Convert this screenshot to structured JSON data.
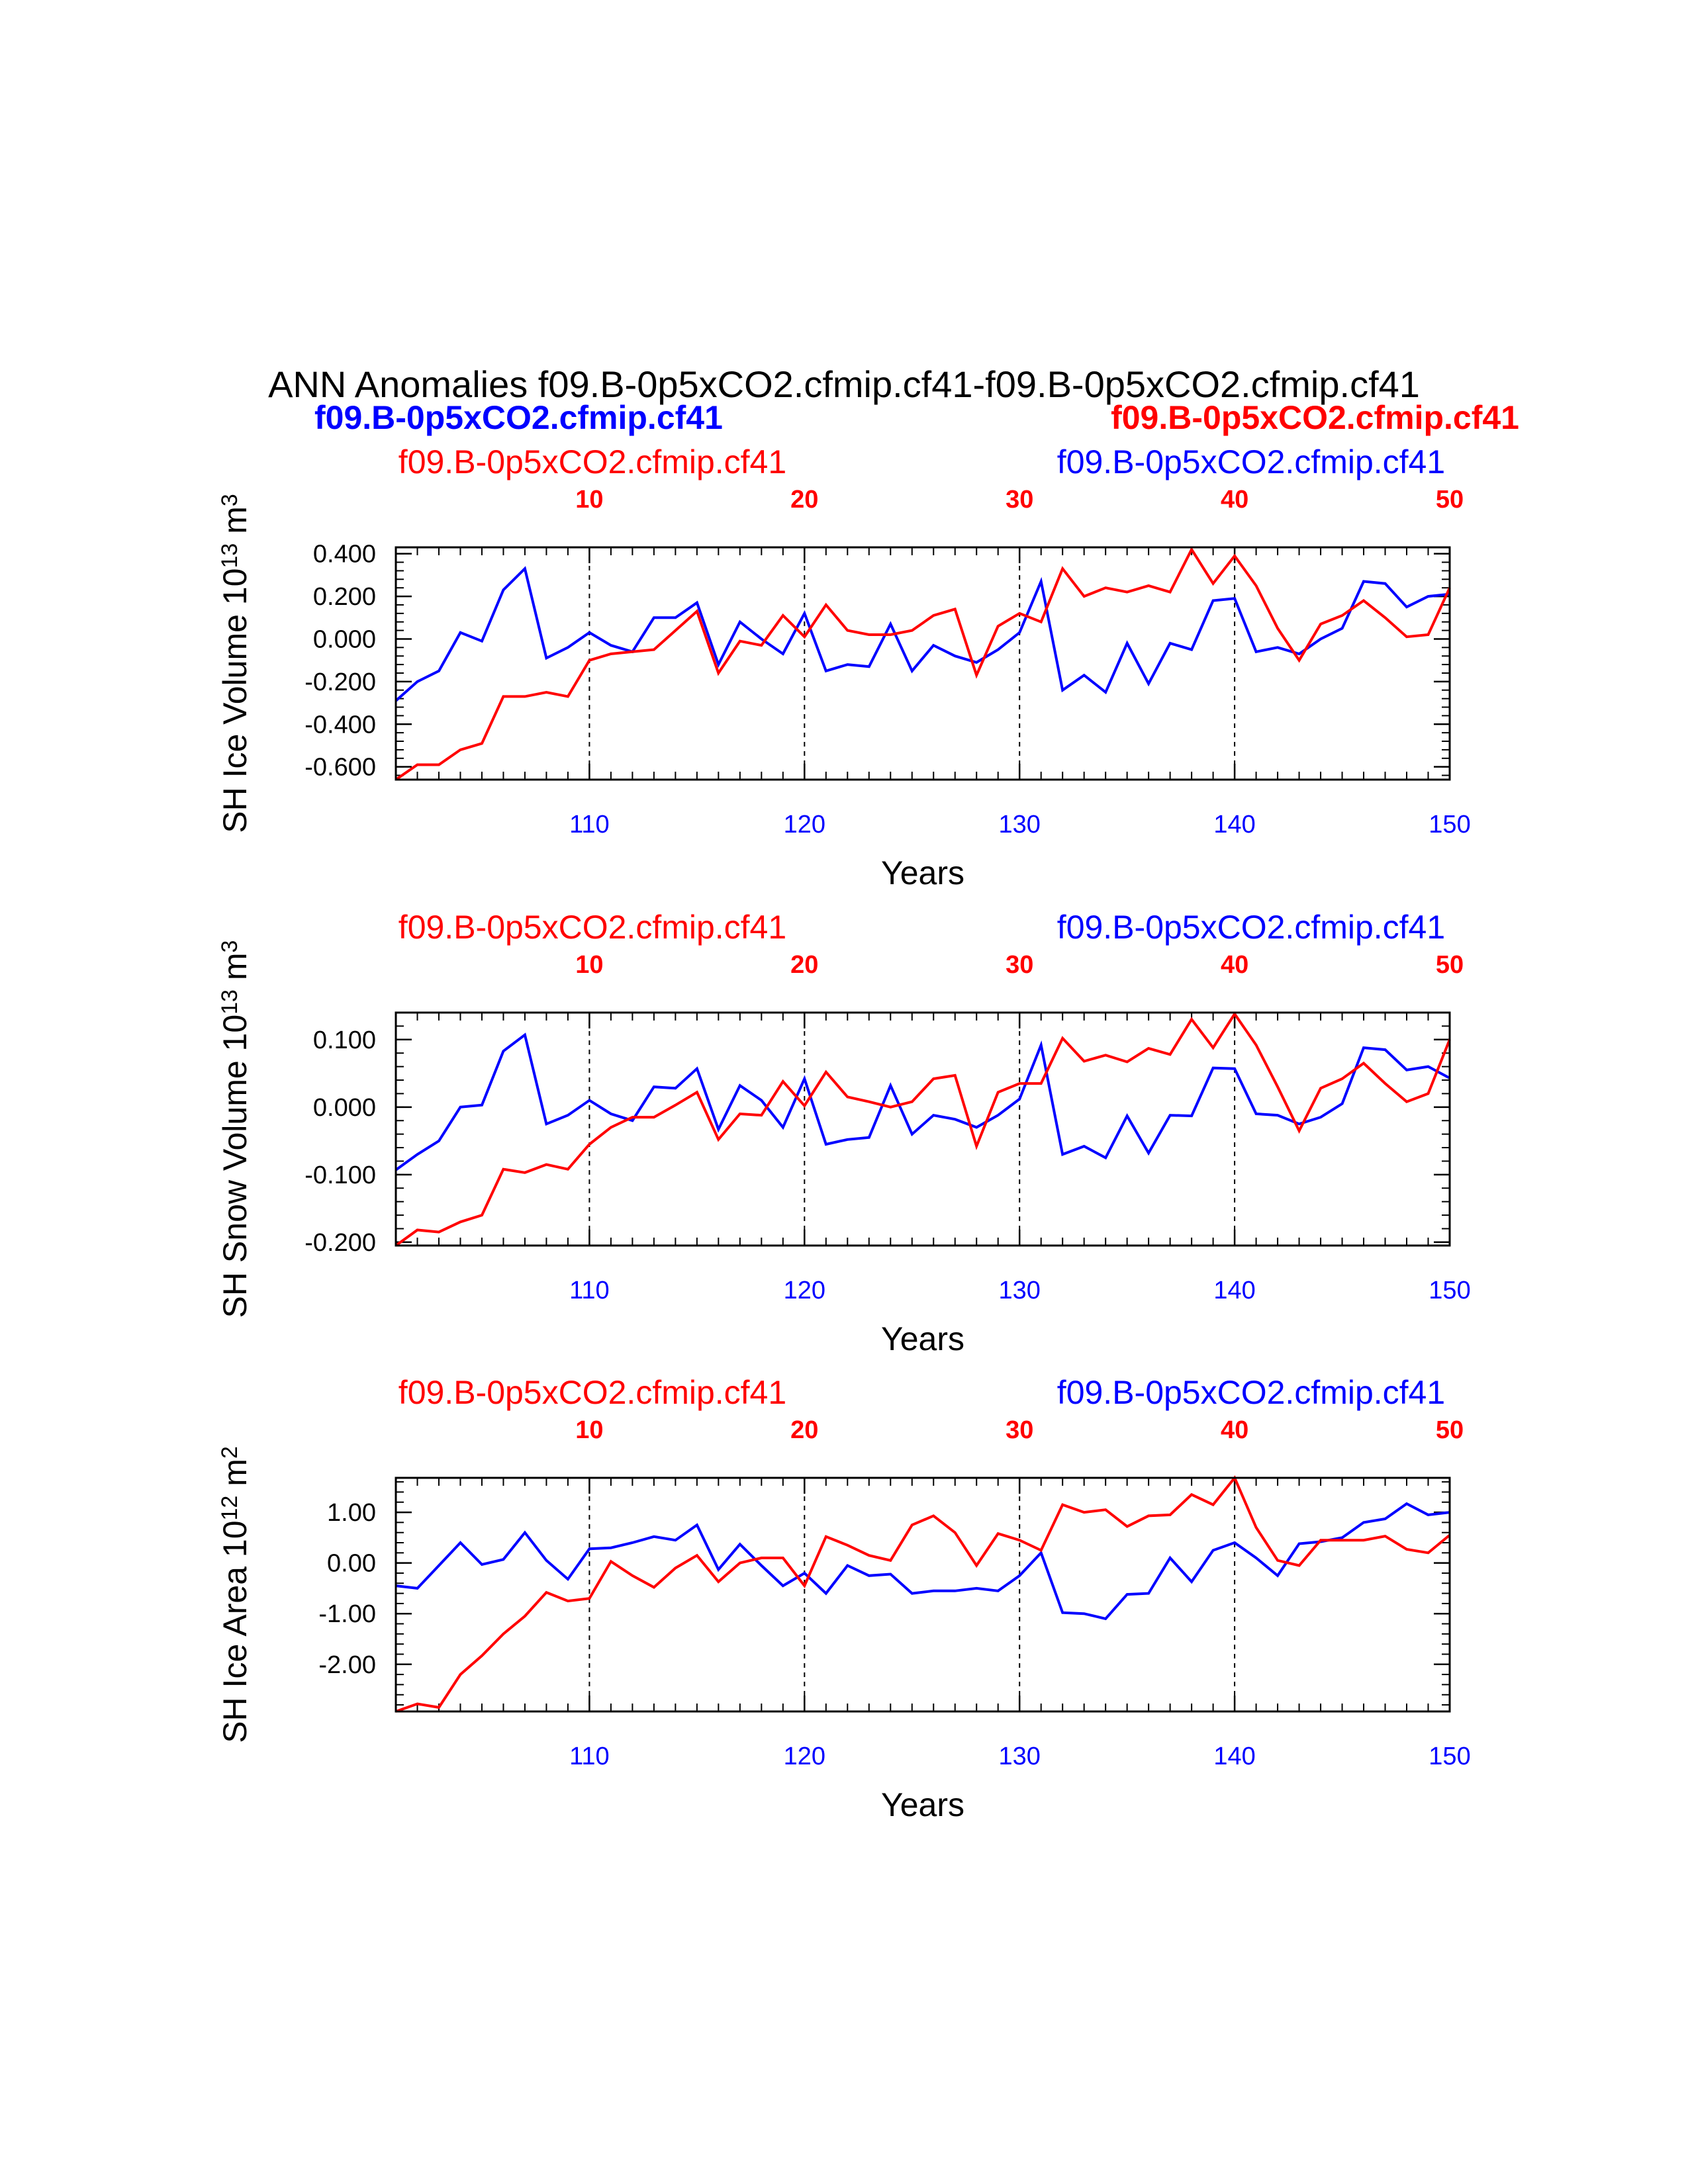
{
  "title": "ANN Anomalies f09.B-0p5xCO2.cfmip.cf41-f09.B-0p5xCO2.cfmip.cf41",
  "legend": {
    "left_bold": "f09.B-0p5xCO2.cfmip.cf41",
    "right_bold": "f09.B-0p5xCO2.cfmip.cf41"
  },
  "colors": {
    "series_a": "#0000ff",
    "series_b": "#ff0000",
    "axis": "#000000"
  },
  "chart_data": [
    {
      "type": "line",
      "panel_top_left_label": "f09.B-0p5xCO2.cfmip.cf41",
      "panel_top_right_label": "f09.B-0p5xCO2.cfmip.cf41",
      "ylabel": {
        "text": "SH Ice Volume 10",
        "exp1": "13",
        "mid": " m",
        "exp2": "3"
      },
      "xlabel": "Years",
      "xlim": [
        101,
        150
      ],
      "ylim": [
        -0.66,
        0.43
      ],
      "yticks": [
        -0.6,
        -0.4,
        -0.2,
        0.0,
        0.2,
        0.4
      ],
      "ytick_labels": [
        "-0.600",
        "-0.400",
        "-0.200",
        "0.000",
        "0.200",
        "0.400"
      ],
      "bottom_ticks": [
        110,
        120,
        130,
        140,
        150
      ],
      "top_ticks": [
        10,
        20,
        30,
        40,
        50
      ],
      "gridlines_x": [
        110,
        120,
        130,
        140
      ],
      "x_start": 101,
      "series": [
        {
          "name": "f09.B-0p5xCO2.cfmip.cf41",
          "color": "#0000ff",
          "values": [
            -0.29,
            -0.2,
            -0.15,
            0.03,
            -0.01,
            0.23,
            0.33,
            -0.09,
            -0.04,
            0.03,
            -0.03,
            -0.06,
            0.1,
            0.1,
            0.17,
            -0.12,
            0.08,
            0.0,
            -0.07,
            0.12,
            -0.15,
            -0.12,
            -0.13,
            0.07,
            -0.15,
            -0.03,
            -0.08,
            -0.11,
            -0.05,
            0.03,
            0.27,
            -0.24,
            -0.17,
            -0.25,
            -0.02,
            -0.21,
            -0.02,
            -0.05,
            0.18,
            0.19,
            -0.06,
            -0.04,
            -0.07,
            0.0,
            0.05,
            0.27,
            0.26,
            0.15,
            0.2,
            0.21
          ]
        },
        {
          "name": "f09.B-0p5xCO2.cfmip.cf41",
          "color": "#ff0000",
          "values": [
            -0.66,
            -0.59,
            -0.59,
            -0.52,
            -0.49,
            -0.27,
            -0.27,
            -0.25,
            -0.27,
            -0.1,
            -0.07,
            -0.06,
            -0.05,
            0.04,
            0.13,
            -0.16,
            -0.01,
            -0.03,
            0.11,
            0.01,
            0.16,
            0.04,
            0.02,
            0.02,
            0.04,
            0.11,
            0.14,
            -0.17,
            0.06,
            0.12,
            0.08,
            0.33,
            0.2,
            0.24,
            0.22,
            0.25,
            0.22,
            0.42,
            0.26,
            0.39,
            0.25,
            0.05,
            -0.1,
            0.07,
            0.11,
            0.18,
            0.1,
            0.01,
            0.02,
            0.24
          ]
        }
      ]
    },
    {
      "type": "line",
      "panel_top_left_label": "f09.B-0p5xCO2.cfmip.cf41",
      "panel_top_right_label": "f09.B-0p5xCO2.cfmip.cf41",
      "ylabel": {
        "text": "SH Snow Volume 10",
        "exp1": "13",
        "mid": " m",
        "exp2": "3"
      },
      "xlabel": "Years",
      "xlim": [
        101,
        150
      ],
      "ylim": [
        -0.205,
        0.14
      ],
      "yticks": [
        -0.2,
        -0.1,
        0.0,
        0.1
      ],
      "ytick_labels": [
        "-0.200",
        "-0.100",
        "0.000",
        "0.100"
      ],
      "bottom_ticks": [
        110,
        120,
        130,
        140,
        150
      ],
      "top_ticks": [
        10,
        20,
        30,
        40,
        50
      ],
      "gridlines_x": [
        110,
        120,
        130,
        140
      ],
      "x_start": 101,
      "series": [
        {
          "name": "f09.B-0p5xCO2.cfmip.cf41",
          "color": "#0000ff",
          "values": [
            -0.093,
            -0.07,
            -0.05,
            0.0,
            0.003,
            0.083,
            0.107,
            -0.025,
            -0.012,
            0.01,
            -0.01,
            -0.02,
            0.03,
            0.028,
            0.057,
            -0.033,
            0.032,
            0.01,
            -0.03,
            0.042,
            -0.055,
            -0.048,
            -0.045,
            0.032,
            -0.04,
            -0.012,
            -0.018,
            -0.03,
            -0.012,
            0.012,
            0.092,
            -0.07,
            -0.058,
            -0.075,
            -0.013,
            -0.068,
            -0.012,
            -0.013,
            0.058,
            0.057,
            -0.01,
            -0.012,
            -0.025,
            -0.015,
            0.005,
            0.088,
            0.085,
            0.055,
            0.06,
            0.043
          ]
        },
        {
          "name": "f09.B-0p5xCO2.cfmip.cf41",
          "color": "#ff0000",
          "values": [
            -0.205,
            -0.182,
            -0.185,
            -0.17,
            -0.16,
            -0.092,
            -0.097,
            -0.085,
            -0.092,
            -0.055,
            -0.03,
            -0.015,
            -0.015,
            0.003,
            0.022,
            -0.048,
            -0.01,
            -0.012,
            0.038,
            0.002,
            0.052,
            0.015,
            0.008,
            0.0,
            0.008,
            0.042,
            0.047,
            -0.058,
            0.022,
            0.035,
            0.035,
            0.102,
            0.068,
            0.077,
            0.067,
            0.087,
            0.078,
            0.13,
            0.088,
            0.138,
            0.092,
            0.03,
            -0.035,
            0.028,
            0.042,
            0.065,
            0.035,
            0.008,
            0.02,
            0.1
          ]
        }
      ]
    },
    {
      "type": "line",
      "panel_top_left_label": "f09.B-0p5xCO2.cfmip.cf41",
      "panel_top_right_label": "f09.B-0p5xCO2.cfmip.cf41",
      "ylabel": {
        "text": "SH Ice Area 10",
        "exp1": "12",
        "mid": " m",
        "exp2": "2"
      },
      "xlabel": "Years",
      "xlim": [
        101,
        150
      ],
      "ylim": [
        -2.93,
        1.68
      ],
      "yticks": [
        -2.0,
        -1.0,
        0.0,
        1.0
      ],
      "ytick_labels": [
        "-2.00",
        "-1.00",
        "0.00",
        "1.00"
      ],
      "bottom_ticks": [
        110,
        120,
        130,
        140,
        150
      ],
      "top_ticks": [
        10,
        20,
        30,
        40,
        50
      ],
      "gridlines_x": [
        110,
        120,
        130,
        140
      ],
      "x_start": 101,
      "series": [
        {
          "name": "f09.B-0p5xCO2.cfmip.cf41",
          "color": "#0000ff",
          "values": [
            -0.45,
            -0.5,
            -0.05,
            0.4,
            -0.03,
            0.07,
            0.6,
            0.05,
            -0.32,
            0.28,
            0.3,
            0.4,
            0.52,
            0.45,
            0.75,
            -0.13,
            0.37,
            -0.05,
            -0.45,
            -0.2,
            -0.6,
            -0.05,
            -0.25,
            -0.22,
            -0.6,
            -0.55,
            -0.55,
            -0.5,
            -0.55,
            -0.25,
            0.2,
            -0.98,
            -1.0,
            -1.1,
            -0.62,
            -0.6,
            0.1,
            -0.37,
            0.25,
            0.4,
            0.1,
            -0.25,
            0.38,
            0.42,
            0.5,
            0.8,
            0.87,
            1.17,
            0.95,
            1.0
          ]
        },
        {
          "name": "f09.B-0p5xCO2.cfmip.cf41",
          "color": "#ff0000",
          "values": [
            -2.93,
            -2.78,
            -2.85,
            -2.2,
            -1.83,
            -1.4,
            -1.05,
            -0.58,
            -0.75,
            -0.7,
            0.03,
            -0.25,
            -0.48,
            -0.1,
            0.15,
            -0.37,
            0.0,
            0.1,
            0.1,
            -0.45,
            0.52,
            0.35,
            0.15,
            0.05,
            0.75,
            0.93,
            0.6,
            -0.05,
            0.58,
            0.45,
            0.25,
            1.15,
            1.0,
            1.05,
            0.72,
            0.93,
            0.95,
            1.35,
            1.15,
            1.68,
            0.7,
            0.05,
            -0.05,
            0.45,
            0.45,
            0.45,
            0.53,
            0.27,
            0.2,
            0.55
          ]
        }
      ]
    }
  ]
}
